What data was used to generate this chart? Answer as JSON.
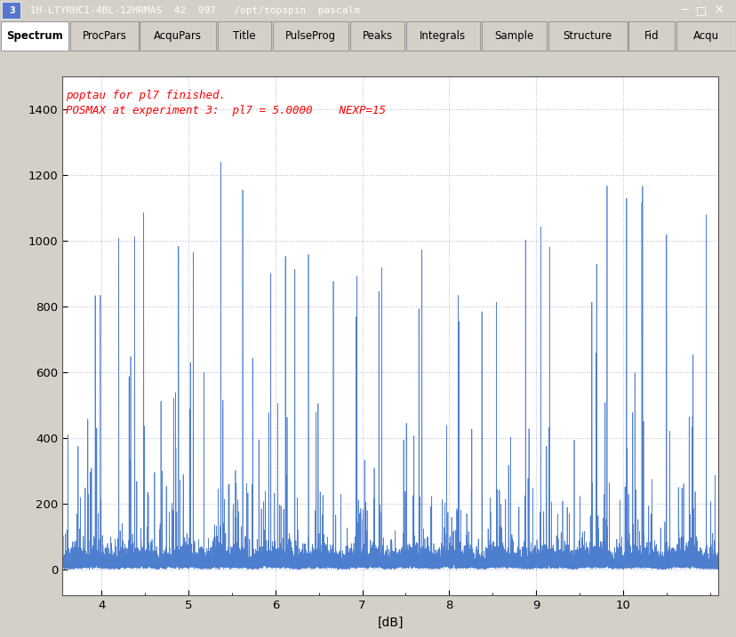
{
  "title_bar": "3  1H-LTYRHCI-4BL-12HRMAS  42  997   /opt/topspin  pascalm",
  "tabs": [
    "Spectrum",
    "ProcPars",
    "AcquPars",
    "Title",
    "PulseProg",
    "Peaks",
    "Integrals",
    "Sample",
    "Structure",
    "Fid",
    "Acqu"
  ],
  "active_tab": "Spectrum",
  "annotation_line1": "poptau for pl7 finished.",
  "annotation_line2": "POSMAX at experiment 3:  pl7 = 5.0000    NEXP=15",
  "annotation_color": "#ff0000",
  "xlabel": "[dB]",
  "xlim": [
    3.55,
    11.1
  ],
  "ylim": [
    -80,
    1500
  ],
  "yticks": [
    0,
    200,
    400,
    600,
    800,
    1000,
    1200,
    1400
  ],
  "xticks": [
    4,
    5,
    6,
    7,
    8,
    9,
    10
  ],
  "spectrum_color": "#4477cc",
  "bg_color": "#ffffff",
  "outer_bg": "#d4d0c8",
  "titlebar_bg": "#0a246a",
  "grid_color": "#8888bb",
  "num_experiments": 15,
  "x_start": 3.62,
  "x_end": 11.0,
  "amplitudes": [
    1070,
    1080,
    1200,
    1250,
    1170,
    1000,
    960,
    950,
    980,
    1000,
    1075,
    1070,
    1200,
    1190,
    1080
  ],
  "n_points": 20000
}
